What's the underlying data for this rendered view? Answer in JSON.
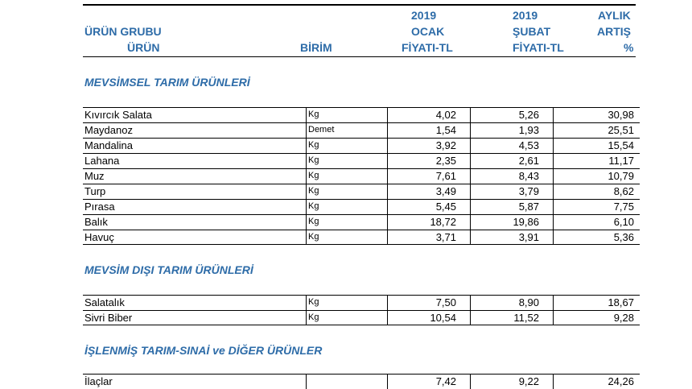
{
  "header": {
    "group_line1": "ÜRÜN GRUBU",
    "group_line2": "ÜRÜN",
    "unit": "BİRİM",
    "jan_line1": "2019",
    "jan_line2": "OCAK",
    "jan_line3": "FİYATI-TL",
    "feb_line1": "2019",
    "feb_line2": "ŞUBAT",
    "feb_line3": "FİYATI-TL",
    "inc_line1": "AYLIK",
    "inc_line2": "ARTIŞ",
    "inc_line3": "%"
  },
  "sections": [
    {
      "title": "MEVSİMSEL TARIM ÜRÜNLERİ",
      "rows": [
        {
          "name": "Kıvırcık Salata",
          "unit": "Kg",
          "jan": "4,02",
          "feb": "5,26",
          "inc": "30,98"
        },
        {
          "name": "Maydanoz",
          "unit": "Demet",
          "jan": "1,54",
          "feb": "1,93",
          "inc": "25,51"
        },
        {
          "name": "Mandalina",
          "unit": "Kg",
          "jan": "3,92",
          "feb": "4,53",
          "inc": "15,54"
        },
        {
          "name": "Lahana",
          "unit": "Kg",
          "jan": "2,35",
          "feb": "2,61",
          "inc": "11,17"
        },
        {
          "name": "Muz",
          "unit": "Kg",
          "jan": "7,61",
          "feb": "8,43",
          "inc": "10,79"
        },
        {
          "name": "Turp",
          "unit": "Kg",
          "jan": "3,49",
          "feb": "3,79",
          "inc": "8,62"
        },
        {
          "name": "Pırasa",
          "unit": "Kg",
          "jan": "5,45",
          "feb": "5,87",
          "inc": "7,75"
        },
        {
          "name": "Balık",
          "unit": "Kg",
          "jan": "18,72",
          "feb": "19,86",
          "inc": "6,10"
        },
        {
          "name": "Havuç",
          "unit": "Kg",
          "jan": "3,71",
          "feb": "3,91",
          "inc": "5,36"
        }
      ]
    },
    {
      "title": "MEVSİM DIŞI TARIM ÜRÜNLERİ",
      "rows": [
        {
          "name": "Salatalık",
          "unit": "Kg",
          "jan": "7,50",
          "feb": "8,90",
          "inc": "18,67"
        },
        {
          "name": "Sivri Biber",
          "unit": "Kg",
          "jan": "10,54",
          "feb": "11,52",
          "inc": "9,28"
        }
      ]
    },
    {
      "title": "İŞLENMİŞ TARIM-SINAİ ve DİĞER ÜRÜNLER",
      "rows": [
        {
          "name": "İlaçlar",
          "unit": "",
          "jan": "7,42",
          "feb": "9,22",
          "inc": "24,26"
        }
      ]
    }
  ]
}
